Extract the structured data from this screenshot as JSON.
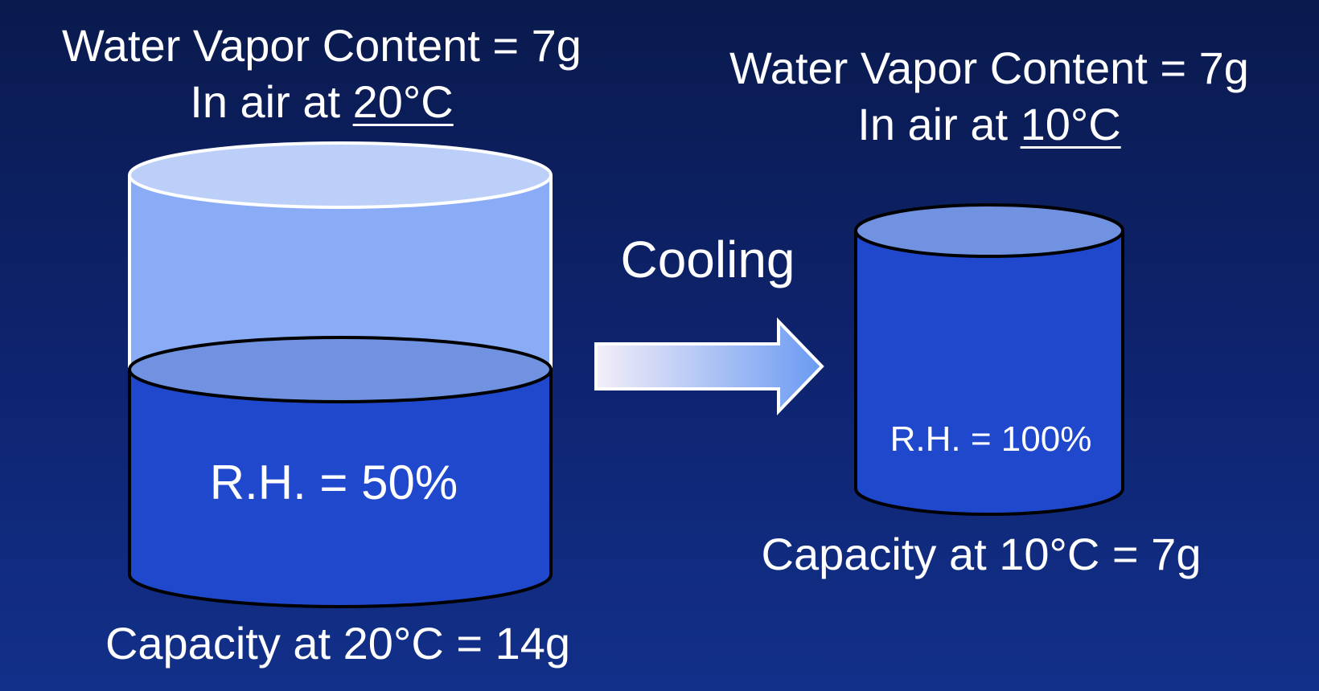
{
  "left": {
    "title_line1": "Water Vapor Content = 7g",
    "title_line2_prefix": "In air at ",
    "title_line2_temp": "20°C",
    "relative_humidity_label": "R.H. = 50%",
    "capacity_label": "Capacity at 20°C = 14g",
    "fill_fraction": 0.5
  },
  "right": {
    "title_line1": "Water Vapor Content = 7g",
    "title_line2_prefix": "In air at ",
    "title_line2_temp": "10°C",
    "relative_humidity_label": "R.H. = 100%",
    "capacity_label": "Capacity at 10°C = 7g",
    "fill_fraction": 1.0
  },
  "arrow": {
    "label": "Cooling"
  },
  "colors": {
    "background_top": "#0a1a4e",
    "background_bottom": "#12308a",
    "empty_cylinder": "#8aabf5",
    "empty_cylinder_top": "#bccff9",
    "water": "#1f48cc",
    "water_surface": "#7092e0",
    "arrow_start": "#f4eef8",
    "arrow_end": "#6a9af2"
  }
}
